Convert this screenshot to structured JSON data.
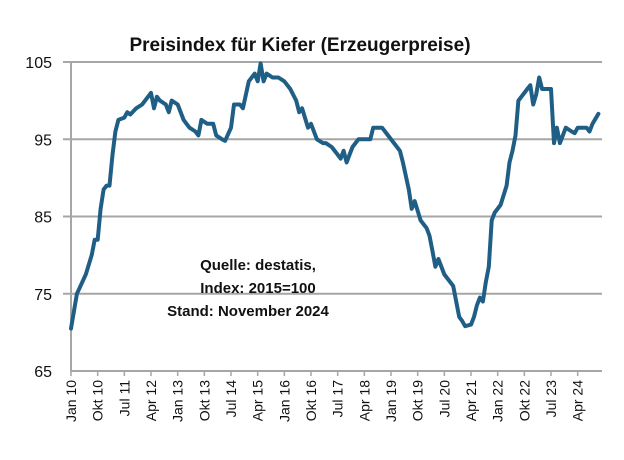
{
  "chart_data": {
    "type": "line",
    "title": "Preisindex für Kiefer (Erzeugerpreise)",
    "xlabel": "",
    "ylabel": "",
    "ylim": [
      65,
      105
    ],
    "yticks": [
      "65",
      "75",
      "85",
      "95",
      "105"
    ],
    "ytick_values": [
      65,
      75,
      85,
      95,
      105
    ],
    "grid": "horizontal",
    "x_start": "Jan 10",
    "x_end": "Nov 24",
    "xtick_step_months": 9,
    "xticks": [
      "Jan 10",
      "Okt 10",
      "Jul 11",
      "Apr 12",
      "Jan 13",
      "Okt 13",
      "Jul 14",
      "Apr 15",
      "Jan 16",
      "Okt 16",
      "Jul 17",
      "Apr 18",
      "Jan 19",
      "Okt 19",
      "Jul 20",
      "Apr 21",
      "Jan 22",
      "Okt 22",
      "Jul 23",
      "Apr 24"
    ],
    "series": [
      {
        "name": "Preisindex Kiefer",
        "color": "#1f5f85",
        "month_index": [
          0,
          2,
          5,
          7,
          8,
          9,
          10,
          11,
          12,
          13,
          14,
          15,
          16,
          18,
          19,
          20,
          22,
          24,
          26,
          27,
          28,
          29,
          30,
          32,
          33,
          34,
          36,
          38,
          40,
          42,
          43,
          44,
          46,
          48,
          49,
          51,
          52,
          54,
          55,
          57,
          58,
          60,
          62,
          63,
          64,
          65,
          66,
          68,
          70,
          72,
          74,
          76,
          77,
          78,
          80,
          81,
          83,
          85,
          86,
          88,
          90,
          91,
          92,
          93,
          95,
          97,
          99,
          101,
          102,
          104,
          105,
          107,
          109,
          111,
          112,
          114,
          115,
          116,
          118,
          120,
          121,
          122,
          123,
          124,
          126,
          128,
          129,
          130,
          131,
          132,
          133,
          135,
          136,
          137,
          138,
          139,
          140,
          141,
          142,
          143,
          145,
          147,
          148,
          149,
          150,
          151,
          152,
          154,
          155,
          156,
          157,
          158,
          159,
          161,
          162,
          163,
          164,
          165,
          167,
          169,
          170,
          171,
          172,
          174,
          175,
          176,
          178
        ],
        "values": [
          70.5,
          75,
          77.5,
          80,
          82,
          82,
          86,
          88.5,
          89,
          89,
          93,
          96,
          97.5,
          97.8,
          98.5,
          98.2,
          99,
          99.5,
          100.5,
          101,
          99,
          100.5,
          100,
          99.5,
          98.5,
          100,
          99.5,
          97.5,
          96.5,
          96,
          95.5,
          97.5,
          97,
          97,
          95.5,
          95,
          94.8,
          96.5,
          99.5,
          99.5,
          99,
          102.5,
          103.5,
          102.5,
          104.8,
          102.5,
          103.5,
          103,
          103,
          102.5,
          101.5,
          100,
          98.5,
          99,
          96.5,
          97,
          95,
          94.5,
          94.5,
          94,
          93,
          92.5,
          93.5,
          92,
          94,
          95,
          95,
          95,
          96.5,
          96.5,
          96.5,
          95.5,
          94.5,
          93.5,
          92,
          88.5,
          86,
          87,
          84.5,
          83.5,
          82.5,
          80.5,
          78.5,
          79.5,
          77.5,
          76.5,
          76,
          74,
          72,
          71.5,
          70.8,
          71,
          72,
          73.5,
          74.5,
          74,
          76.5,
          78.5,
          84.5,
          85.5,
          86.5,
          89,
          92,
          93.5,
          95.5,
          100,
          100.5,
          101.5,
          102,
          99.5,
          100.8,
          103,
          101.5,
          101.5,
          101.5,
          94.5,
          96.5,
          94.5,
          96.5,
          96,
          95.8,
          96.5,
          96.5,
          96.5,
          96,
          97,
          98.3
        ]
      }
    ],
    "annotations": [
      "Quelle: destatis,",
      "Index: 2015=100",
      "Stand: November 2024"
    ]
  },
  "colors": {
    "line": "#1f5f85",
    "grid": "#a6a6a6",
    "text": "#111111"
  }
}
